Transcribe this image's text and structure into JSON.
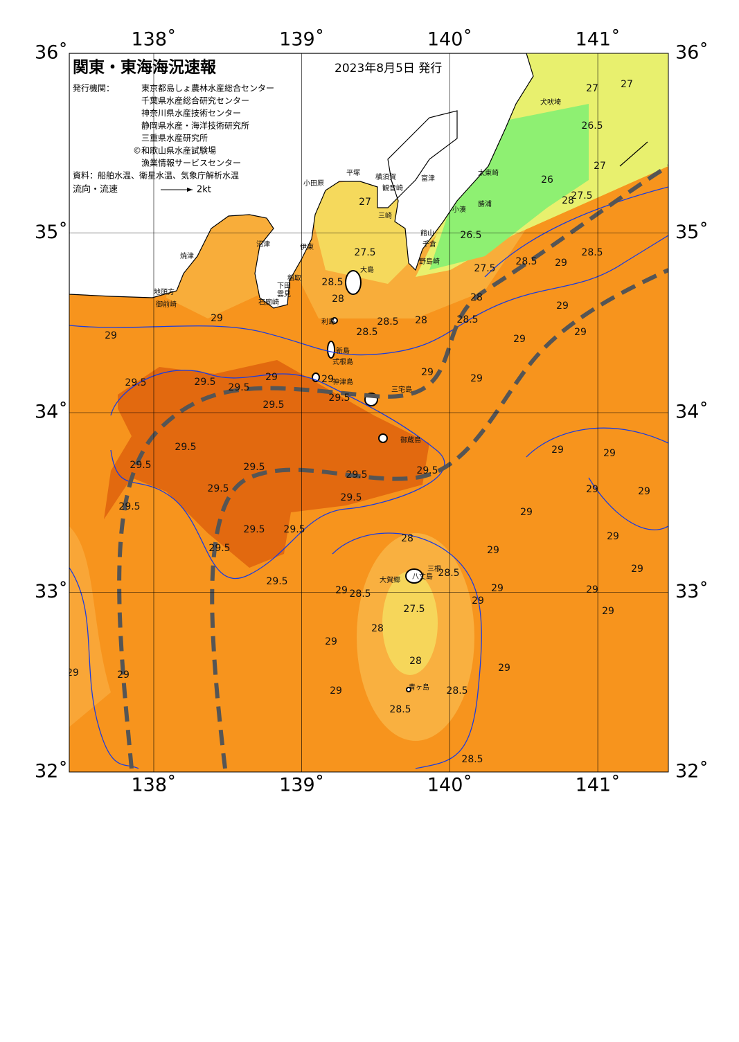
{
  "header": {
    "title": "関東・東海海況速報",
    "date": "2023年8月5日 発行"
  },
  "issuers": {
    "label": "発行機関：",
    "orgs": [
      "東京都島しょ農林水産総合センター",
      "千葉県水産総合研究センター",
      "神奈川県水産技術センター",
      "静岡県水産・海洋技術研究所",
      "三重県水産研究所",
      "©和歌山県水産試験場",
      "漁業情報サービスセンター"
    ]
  },
  "source": "資料：船舶水温、衛星水温、気象庁解析水温",
  "legend": {
    "label": "流向・流速",
    "speed": "2kt"
  },
  "map": {
    "lon_ticks": [
      {
        "value": 138,
        "label": "138˚"
      },
      {
        "value": 139,
        "label": "139˚"
      },
      {
        "value": 140,
        "label": "140˚"
      },
      {
        "value": 141,
        "label": "141˚"
      }
    ],
    "lat_ticks": [
      {
        "value": 36,
        "label": "36˚"
      },
      {
        "value": 35,
        "label": "35˚"
      },
      {
        "value": 34,
        "label": "34˚"
      },
      {
        "value": 33,
        "label": "33˚"
      },
      {
        "value": 32,
        "label": "32˚"
      }
    ],
    "place_names": [
      "犬吠埼",
      "太東崎",
      "勝浦",
      "小湊",
      "館山",
      "千倉",
      "野島崎",
      "富津",
      "観音崎",
      "横須賀",
      "平塚",
      "小田原",
      "三崎",
      "伊東",
      "稲取",
      "下田",
      "雲見",
      "石廊崎",
      "沼津",
      "焼津",
      "地頭方",
      "御前崎",
      "大島",
      "利島",
      "新島",
      "式根島",
      "神津島",
      "三宅島",
      "御蔵島",
      "八丈島",
      "三根",
      "大賀郷",
      "青ヶ島"
    ],
    "isotherm_labels": [
      "27",
      "27.5",
      "28.5",
      "28",
      "28.5",
      "28.5",
      "28",
      "28.5",
      "28",
      "27.5",
      "26.5",
      "26.5",
      "27",
      "27",
      "27",
      "27.5",
      "28",
      "26",
      "28.5",
      "29",
      "28.5",
      "29",
      "29",
      "29",
      "29",
      "29",
      "29",
      "29",
      "29.5",
      "29.5",
      "29.5",
      "29",
      "29.5",
      "29",
      "29.5",
      "29.5",
      "29.5",
      "29.5",
      "29.5",
      "29.5",
      "29.5",
      "29.5",
      "29.5",
      "29.5",
      "29.5",
      "29.5",
      "29.5",
      "29",
      "29",
      "29",
      "29",
      "29",
      "29",
      "29",
      "29",
      "29",
      "29",
      "29",
      "29",
      "29",
      "28.5",
      "28.5",
      "28",
      "27.5",
      "28",
      "29",
      "28",
      "29",
      "29",
      "29",
      "29",
      "28.5",
      "28.5",
      "28.5"
    ]
  }
}
